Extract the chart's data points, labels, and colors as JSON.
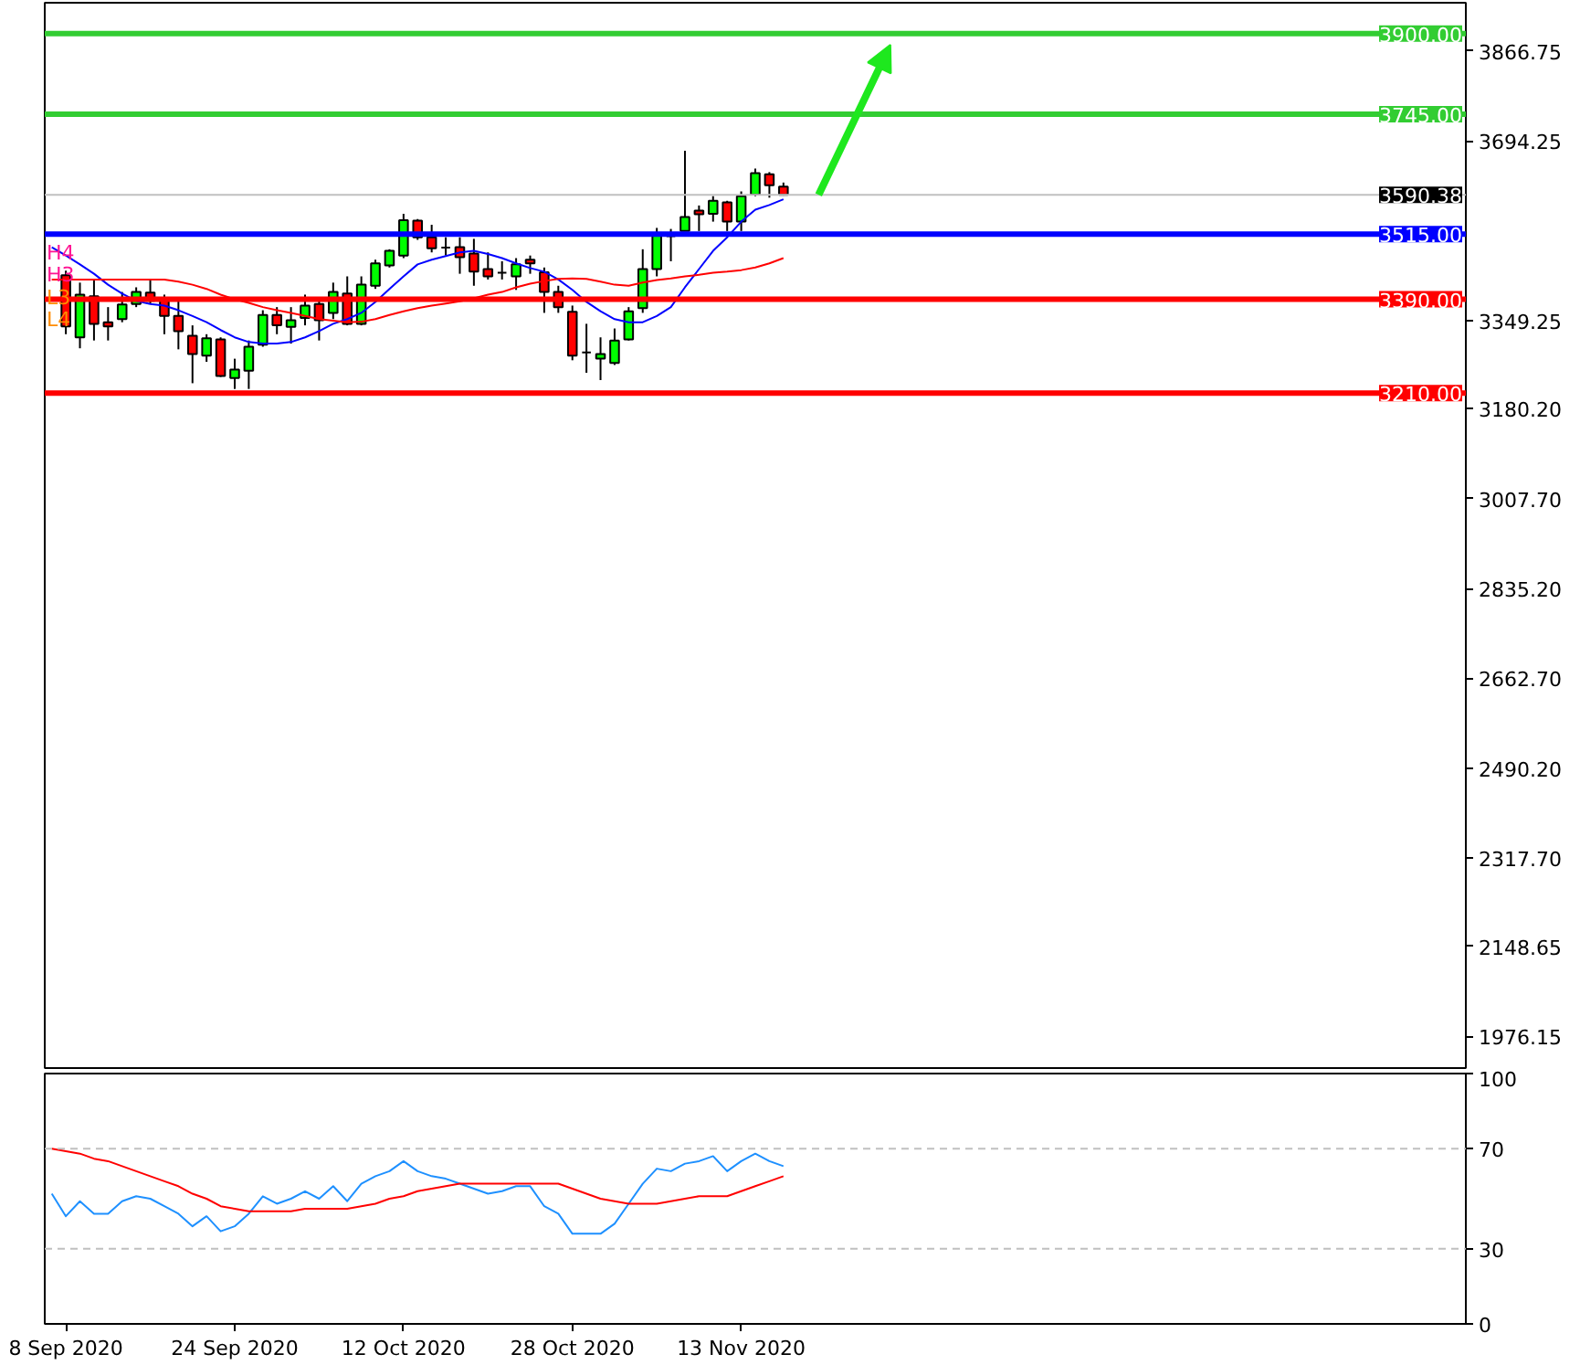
{
  "chart_data": [
    {
      "type": "candlestick",
      "categories": [
        null,
        null,
        null,
        null,
        null,
        null,
        null,
        null,
        null,
        null,
        null,
        null,
        null,
        null,
        null,
        null,
        null,
        null,
        null,
        null,
        null,
        null,
        null,
        null,
        null,
        null,
        null,
        null,
        null,
        null,
        null,
        null,
        null,
        null,
        null,
        null,
        null,
        null,
        null,
        null,
        null,
        null,
        null,
        null,
        null,
        null,
        null,
        null,
        null,
        null,
        null,
        null,
        null,
        null,
        null,
        null,
        null,
        null,
        null,
        null,
        null,
        null,
        null,
        null,
        null,
        null,
        null,
        null,
        null,
        null,
        null,
        null,
        null,
        null,
        null,
        null,
        null,
        null,
        null,
        null,
        null,
        null,
        null,
        null,
        null,
        null,
        null,
        null,
        null,
        null,
        null,
        null,
        null,
        null,
        null,
        null,
        null,
        null,
        null,
        null,
        null
      ],
      "ohlc": [
        null,
        [
          3436,
          3445,
          3323,
          3338
        ],
        [
          3317,
          3422,
          3296,
          3399
        ],
        [
          3396,
          3428,
          3311,
          3343
        ],
        [
          3346,
          3375,
          3311,
          3338
        ],
        [
          3352,
          3404,
          3346,
          3380
        ],
        [
          3381,
          3413,
          3375,
          3404
        ],
        [
          3403,
          3428,
          3381,
          3387
        ],
        [
          3389,
          3399,
          3323,
          3358
        ],
        [
          3358,
          3387,
          3294,
          3329
        ],
        [
          3320,
          3340,
          3229,
          3285
        ],
        [
          3282,
          3323,
          3270,
          3315
        ],
        [
          3313,
          3317,
          3241,
          3243
        ],
        [
          3239,
          3276,
          3218,
          3255
        ],
        [
          3253,
          3311,
          3218,
          3299
        ],
        [
          3303,
          3369,
          3299,
          3360
        ],
        [
          3360,
          3375,
          3323,
          3340
        ],
        [
          3337,
          3375,
          3305,
          3350
        ],
        [
          3354,
          3399,
          3340,
          3378
        ],
        [
          3381,
          3387,
          3311,
          3350
        ],
        [
          3364,
          3422,
          3352,
          3404
        ],
        [
          3401,
          3434,
          3340,
          3343
        ],
        [
          3343,
          3434,
          3340,
          3418
        ],
        [
          3416,
          3466,
          3410,
          3459
        ],
        [
          3455,
          3486,
          3451,
          3483
        ],
        [
          3474,
          3554,
          3469,
          3542
        ],
        [
          3541,
          3544,
          3504,
          3509
        ],
        [
          3509,
          3533,
          3480,
          3488
        ],
        [
          3489,
          3509,
          3474,
          3489
        ],
        [
          3490,
          3509,
          3439,
          3471
        ],
        [
          3478,
          3506,
          3416,
          3443
        ],
        [
          3448,
          3480,
          3428,
          3434
        ],
        [
          3441,
          3463,
          3428,
          3441
        ],
        [
          3434,
          3469,
          3408,
          3457
        ],
        [
          3466,
          3474,
          3439,
          3459
        ],
        [
          3442,
          3451,
          3364,
          3404
        ],
        [
          3404,
          3416,
          3364,
          3375
        ],
        [
          3366,
          3378,
          3273,
          3282
        ],
        [
          3288,
          3343,
          3249,
          3288
        ],
        [
          3276,
          3317,
          3235,
          3285
        ],
        [
          3268,
          3334,
          3264,
          3311
        ],
        [
          3313,
          3375,
          3311,
          3367
        ],
        [
          3373,
          3486,
          3364,
          3448
        ],
        [
          3448,
          3527,
          3434,
          3513
        ],
        [
          3511,
          3525,
          3463,
          3511
        ],
        [
          3521,
          3675,
          3521,
          3548
        ],
        [
          3560,
          3570,
          3521,
          3553
        ],
        [
          3554,
          3588,
          3539,
          3579
        ],
        [
          3576,
          3579,
          3521,
          3539
        ],
        [
          3539,
          3597,
          3521,
          3588
        ],
        [
          3591,
          3641,
          3588,
          3632
        ],
        [
          3630,
          3634,
          3585,
          3609
        ],
        [
          3606,
          3614,
          3589,
          3590.38
        ],
        null,
        null,
        null,
        null,
        null,
        null,
        null,
        null,
        null,
        null,
        null,
        null,
        null,
        null,
        null,
        null,
        null,
        null,
        null,
        null,
        null,
        null,
        null,
        null,
        null,
        null,
        null,
        null,
        null,
        null,
        null,
        null,
        null,
        null,
        null,
        null,
        null,
        null,
        null,
        null,
        null,
        null,
        null,
        null,
        null,
        null,
        null,
        null
      ],
      "colors": [
        null,
        "#ff0000",
        "#00ff00",
        "#ff0000",
        "#ff0000",
        "#00ff00",
        "#00ff00",
        "#ff0000",
        "#ff0000",
        "#ff0000",
        "#ff0000",
        "#00ff00",
        "#ff0000",
        "#00ff00",
        "#00ff00",
        "#00ff00",
        "#ff0000",
        "#00ff00",
        "#00ff00",
        "#ff0000",
        "#00ff00",
        "#ff0000",
        "#00ff00",
        "#00ff00",
        "#00ff00",
        "#00ff00",
        "#ff0000",
        "#ff0000",
        "#000000",
        "#ff0000",
        "#ff0000",
        "#ff0000",
        "#000000",
        "#00ff00",
        "#ff0000",
        "#ff0000",
        "#ff0000",
        "#ff0000",
        "#000000",
        "#00ff00",
        "#00ff00",
        "#00ff00",
        "#00ff00",
        "#00ff00",
        "#000000",
        "#00ff00",
        "#ff0000",
        "#00ff00",
        "#ff0000",
        "#00ff00",
        "#00ff00",
        "#ff0000",
        "#ff0000",
        null,
        null,
        null,
        null,
        null,
        null,
        null,
        null,
        null,
        null,
        null,
        null,
        null,
        null,
        null,
        null,
        null,
        null,
        null,
        null,
        null,
        null,
        null,
        null,
        null,
        null,
        null,
        null,
        null,
        null,
        null,
        null,
        null,
        null,
        null,
        null,
        null,
        null,
        null,
        null,
        null,
        null,
        null,
        null,
        null,
        null,
        null,
        null
      ],
      "series": [
        {
          "type": "line",
          "color": "#0000ff",
          "values": [
            3490,
            3474,
            3457,
            3439,
            3418,
            3401,
            3387,
            3381,
            3378,
            3369,
            3358,
            3346,
            3331,
            3317,
            3308,
            3305,
            3305,
            3308,
            3317,
            3329,
            3343,
            3352,
            3364,
            3385,
            3410,
            3434,
            3457,
            3466,
            3473,
            3480,
            3483,
            3477,
            3469,
            3459,
            3450,
            3443,
            3428,
            3408,
            3385,
            3367,
            3352,
            3346,
            3346,
            3358,
            3375,
            3413,
            3448,
            3483,
            3509,
            3539,
            3562,
            3571,
            3582,
            null,
            null,
            null,
            null,
            null,
            null,
            null,
            null,
            null,
            null,
            null,
            null,
            null,
            null,
            null,
            null,
            null,
            null,
            null,
            null,
            null,
            null,
            null,
            null,
            null,
            null,
            null,
            null,
            null,
            null,
            null,
            null,
            null,
            null,
            null,
            null,
            null,
            null,
            null,
            null,
            null,
            null,
            null,
            null,
            null,
            null,
            null,
            null
          ]
        },
        {
          "type": "line",
          "color": "#ff0000",
          "values": [
            3428,
            3428,
            3428,
            3428,
            3428,
            3428,
            3428,
            3428,
            3428,
            3424,
            3418,
            3410,
            3399,
            3390,
            3383,
            3375,
            3369,
            3364,
            3358,
            3352,
            3349,
            3346,
            3347,
            3352,
            3360,
            3367,
            3373,
            3378,
            3382,
            3386,
            3392,
            3399,
            3404,
            3413,
            3420,
            3425,
            3429,
            3430,
            3429,
            3424,
            3418,
            3416,
            3422,
            3427,
            3430,
            3434,
            3437,
            3441,
            3443,
            3446,
            3451,
            3459,
            3469,
            null,
            null,
            null,
            null,
            null,
            null,
            null,
            null,
            null,
            null,
            null,
            null,
            null,
            null,
            null,
            null,
            null,
            null,
            null,
            null,
            null,
            null,
            null,
            null,
            null,
            null,
            null,
            null,
            null,
            null,
            null,
            null,
            null,
            null,
            null,
            null,
            null,
            null,
            null,
            null,
            null,
            null,
            null,
            null,
            null,
            null,
            null,
            null
          ]
        }
      ],
      "ylim": [
        1915,
        3959
      ],
      "yticks": [
        3866.75,
        3694.25,
        3349.25,
        {
          "value": 3180.2,
          "label": "3180.20"
        },
        {
          "value": 3007.7,
          "label": "3007.70"
        },
        {
          "value": 2835.2,
          "label": "2835.20"
        },
        {
          "value": 2662.7,
          "label": "2662.70"
        },
        {
          "value": 2490.2,
          "label": "2490.20"
        },
        {
          "value": 2317.7,
          "label": "2317.70"
        },
        2148.65,
        1976.15
      ],
      "tick_labels": "y",
      "ref_lines": [
        {
          "axis": "y",
          "value": 3900,
          "label": "3900.00",
          "color": "#32cd32"
        },
        {
          "axis": "y",
          "value": 3745,
          "label": "3745.00",
          "color": "#32cd32"
        },
        {
          "axis": "y",
          "value": 3590.38,
          "label": "3590.38",
          "color": "#c0c0c0"
        },
        {
          "axis": "y",
          "value": 3515,
          "label": "3515.00",
          "color": "#0000ff"
        },
        {
          "axis": "y",
          "value": 3390,
          "label": "3390.00",
          "color": "#ff0000"
        },
        {
          "axis": "y",
          "value": 3210,
          "label": "3210.00",
          "color": "#ff0000"
        }
      ],
      "annotations": [
        "H4",
        "H3",
        "L3",
        "L4"
      ]
    },
    {
      "type": "line",
      "categories": [
        null,
        "8 Sep 2020",
        null,
        null,
        null,
        null,
        null,
        null,
        null,
        null,
        null,
        null,
        null,
        "24 Sep 2020",
        null,
        null,
        null,
        null,
        null,
        null,
        null,
        null,
        null,
        null,
        null,
        "12 Oct 2020",
        null,
        null,
        null,
        null,
        null,
        null,
        null,
        null,
        null,
        null,
        null,
        "28 Oct 2020",
        null,
        null,
        null,
        null,
        null,
        null,
        null,
        null,
        null,
        null,
        null,
        "13 Nov 2020",
        null,
        null,
        null,
        null,
        null,
        null,
        null,
        null,
        null,
        null,
        null,
        null,
        null,
        null,
        null,
        null,
        null,
        null,
        null,
        null,
        null,
        null,
        null,
        null,
        null,
        null,
        null,
        null,
        null,
        null,
        null,
        null,
        null,
        null,
        null,
        null,
        null,
        null,
        null,
        null,
        null,
        null,
        null,
        null,
        null,
        null,
        null,
        null,
        null,
        null,
        null
      ],
      "series": [
        {
          "color": "#1e90ff",
          "values": [
            52,
            43,
            49,
            44,
            44,
            49,
            51,
            50,
            47,
            44,
            39,
            43,
            37,
            39,
            44,
            51,
            48,
            50,
            53,
            50,
            55,
            49,
            56,
            59,
            61,
            65,
            61,
            59,
            58,
            56,
            54,
            52,
            53,
            55,
            55,
            47,
            44,
            36,
            36,
            36,
            40,
            48,
            56,
            62,
            61,
            64,
            65,
            67,
            61,
            65,
            68,
            65,
            63,
            null,
            null,
            null,
            null,
            null,
            null,
            null,
            null,
            null,
            null,
            null,
            null,
            null,
            null,
            null,
            null,
            null,
            null,
            null,
            null,
            null,
            null,
            null,
            null,
            null,
            null,
            null,
            null,
            null,
            null,
            null,
            null,
            null,
            null,
            null,
            null,
            null,
            null,
            null,
            null,
            null,
            null,
            null,
            null,
            null,
            null,
            null,
            null
          ]
        },
        {
          "color": "#ff0000",
          "values": [
            70,
            69,
            68,
            66,
            65,
            63,
            61,
            59,
            57,
            55,
            52,
            50,
            47,
            46,
            45,
            45,
            45,
            45,
            46,
            46,
            46,
            46,
            47,
            48,
            50,
            51,
            53,
            54,
            55,
            56,
            56,
            56,
            56,
            56,
            56,
            56,
            56,
            54,
            52,
            50,
            49,
            48,
            48,
            48,
            49,
            50,
            51,
            51,
            51,
            53,
            55,
            57,
            59,
            null,
            null,
            null,
            null,
            null,
            null,
            null,
            null,
            null,
            null,
            null,
            null,
            null,
            null,
            null,
            null,
            null,
            null,
            null,
            null,
            null,
            null,
            null,
            null,
            null,
            null,
            null,
            null,
            null,
            null,
            null,
            null,
            null,
            null,
            null,
            null,
            null,
            null,
            null,
            null,
            null,
            null,
            null,
            null,
            null,
            null,
            null,
            null
          ]
        }
      ],
      "ylim": [
        0,
        100
      ],
      "yticks": [
        0,
        30,
        70,
        100
      ],
      "ref_lines": [
        {
          "axis": "y",
          "value": 70,
          "color": "#c0c0c0",
          "line_style": "dashed"
        },
        {
          "axis": "y",
          "value": 30,
          "color": "#c0c0c0",
          "line_style": "dashed"
        }
      ]
    }
  ]
}
